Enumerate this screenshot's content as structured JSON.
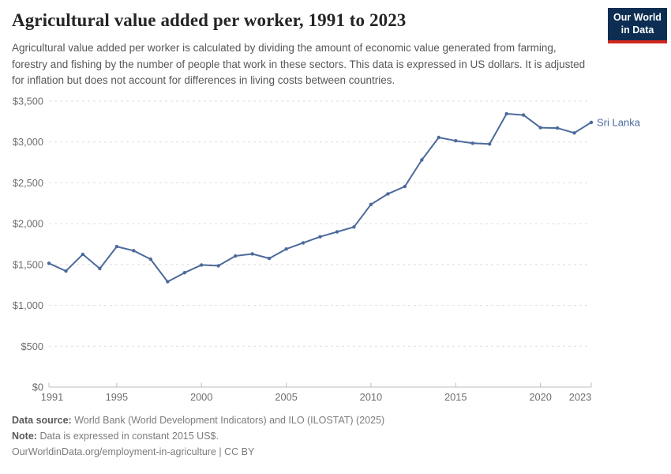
{
  "header": {
    "title": "Agricultural value added per worker, 1991 to 2023",
    "subtitle": "Agricultural value added per worker is calculated by dividing the amount of economic value generated from farming, forestry and fishing by the number of people that work in these sectors. This data is expressed in US dollars. It is adjusted for inflation but does not account for differences in living costs between countries.",
    "logo_line1": "Our World",
    "logo_line2": "in Data"
  },
  "chart_data": {
    "type": "line",
    "title": "Agricultural value added per worker, 1991 to 2023",
    "unit": "constant 2015 US$",
    "x": [
      1991,
      1992,
      1993,
      1994,
      1995,
      1996,
      1997,
      1998,
      1999,
      2000,
      2001,
      2002,
      2003,
      2004,
      2005,
      2006,
      2007,
      2008,
      2009,
      2010,
      2011,
      2012,
      2013,
      2014,
      2015,
      2016,
      2017,
      2018,
      2019,
      2020,
      2021,
      2022,
      2023
    ],
    "series": [
      {
        "name": "Sri Lanka",
        "values": [
          1515,
          1420,
          1625,
          1450,
          1720,
          1670,
          1565,
          1290,
          1400,
          1495,
          1485,
          1605,
          1630,
          1575,
          1690,
          1765,
          1840,
          1900,
          1960,
          2235,
          2365,
          2455,
          2780,
          3055,
          3015,
          2985,
          2975,
          3345,
          3330,
          3175,
          3170,
          3110,
          3240
        ]
      }
    ],
    "ylim": [
      0,
      3500
    ],
    "yticks": [
      0,
      500,
      1000,
      1500,
      2000,
      2500,
      3000,
      3500
    ],
    "xticks": [
      1991,
      1995,
      2000,
      2005,
      2010,
      2015,
      2020,
      2023
    ],
    "grid": "horizontal-dashed",
    "legend": "line-end-label",
    "line_color": "#4C6A9C",
    "y_prefix": "$"
  },
  "footer": {
    "data_source_label": "Data source:",
    "data_source_value": "World Bank (World Development Indicators) and ILO (ILOSTAT) (2025)",
    "note_label": "Note:",
    "note_value": "Data is expressed in constant 2015 US$.",
    "link_line": "OurWorldinData.org/employment-in-agriculture | CC BY"
  },
  "colors": {
    "accent_line": "#4C6A9C",
    "logo_navy": "#0d2e52",
    "logo_red": "#d1281e",
    "gridline": "#dedede",
    "axis": "#bcbcbc"
  }
}
